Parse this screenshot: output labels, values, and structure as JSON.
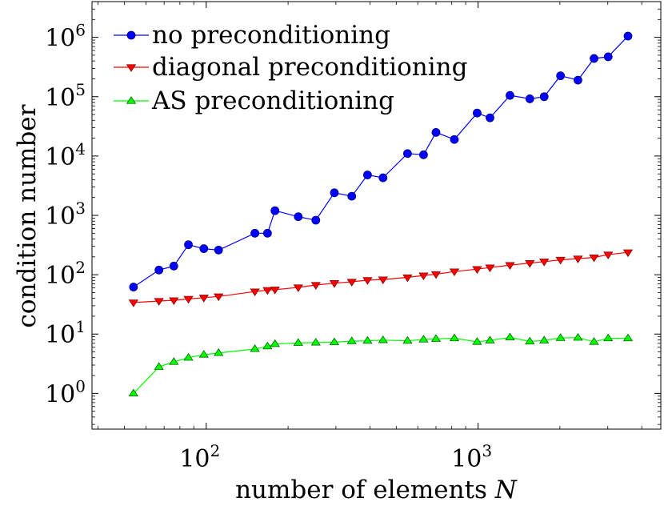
{
  "chart_data": {
    "type": "line",
    "x_scale": "log",
    "y_scale": "log",
    "xlim": [
      38,
      4700
    ],
    "ylim": [
      0.25,
      4000000
    ],
    "xticks": [
      {
        "value": 100,
        "base": "10",
        "exp": "2"
      },
      {
        "value": 1000,
        "base": "10",
        "exp": "3"
      }
    ],
    "yticks": [
      {
        "value": 1,
        "base": "10",
        "exp": "0"
      },
      {
        "value": 10,
        "base": "10",
        "exp": "1"
      },
      {
        "value": 100,
        "base": "10",
        "exp": "2"
      },
      {
        "value": 1000,
        "base": "10",
        "exp": "3"
      },
      {
        "value": 10000,
        "base": "10",
        "exp": "4"
      },
      {
        "value": 100000,
        "base": "10",
        "exp": "5"
      },
      {
        "value": 1000000,
        "base": "10",
        "exp": "6"
      }
    ],
    "xlabel": "number of elements",
    "xlabel_symbol": "N",
    "ylabel": "condition number",
    "grid": false,
    "legend_position": "top-left",
    "x": [
      54,
      67,
      76,
      86,
      98,
      111,
      151,
      168,
      179,
      218,
      253,
      296,
      343,
      392,
      447,
      550,
      630,
      700,
      818,
      992,
      1106,
      1310,
      1550,
      1750,
      2010,
      2330,
      2670,
      3010,
      3560
    ],
    "series": [
      {
        "name": "no preconditioning",
        "color": "#0000ff",
        "marker": "circle",
        "values": [
          62,
          120,
          140,
          320,
          275,
          260,
          500,
          500,
          1200,
          950,
          830,
          2400,
          2100,
          4800,
          4300,
          11000,
          10500,
          25000,
          19000,
          53000,
          44000,
          105000,
          92000,
          100000,
          225000,
          190000,
          440000,
          470000,
          1050000
        ]
      },
      {
        "name": "diagonal preconditioning",
        "color": "#ff0000",
        "marker": "triangle-down",
        "values": [
          34,
          36,
          37,
          39,
          41,
          43,
          52,
          55,
          56,
          61,
          67,
          72,
          76,
          81,
          83,
          90,
          97,
          102,
          113,
          124,
          132,
          145,
          157,
          166,
          178,
          187,
          195,
          218,
          238
        ]
      },
      {
        "name": "AS preconditioning",
        "color": "#00ff00",
        "marker": "triangle-up",
        "values": [
          1.0,
          2.8,
          3.4,
          4.0,
          4.5,
          4.8,
          5.6,
          6.2,
          6.8,
          7.1,
          7.2,
          7.3,
          7.6,
          7.7,
          7.9,
          7.7,
          8.1,
          8.3,
          8.5,
          7.4,
          7.8,
          8.8,
          7.5,
          7.8,
          8.6,
          8.7,
          7.4,
          8.5,
          8.5
        ]
      }
    ]
  }
}
